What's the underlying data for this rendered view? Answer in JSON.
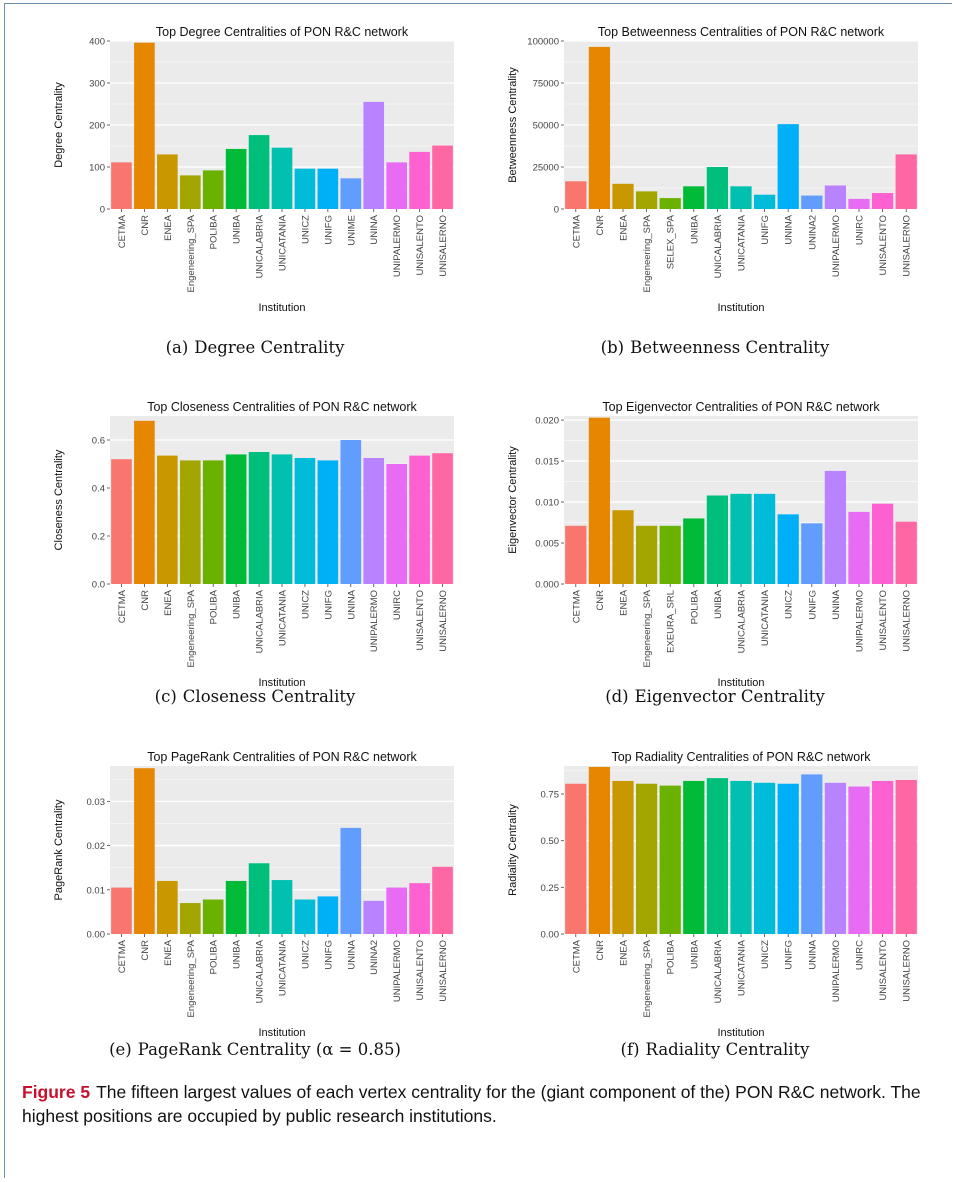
{
  "figure": {
    "label": "Figure 5",
    "caption": "The fifteen largest values of each vertex centrality for the (giant component of the) PON R&C network. The highest positions are occupied by public research institutions."
  },
  "subcaptions": [
    {
      "letter": "(a)",
      "text": "Degree Centrality"
    },
    {
      "letter": "(b)",
      "text": "Betweenness Centrality"
    },
    {
      "letter": "(c)",
      "text": "Closeness Centrality"
    },
    {
      "letter": "(d)",
      "text": "Eigenvector Centrality"
    },
    {
      "letter": "(e)",
      "text": "PageRank Centrality (α = 0.85)"
    },
    {
      "letter": "(f)",
      "text": "Radiality Centrality"
    }
  ],
  "palette": [
    "#F8766D",
    "#E58700",
    "#C99800",
    "#A3A500",
    "#6BB100",
    "#00BA38",
    "#00BF7D",
    "#00C0AF",
    "#00BCD8",
    "#00B0F6",
    "#619CFF",
    "#B983FF",
    "#E76BF3",
    "#FD61D1",
    "#FF67A4"
  ],
  "chart_data": [
    {
      "type": "bar",
      "title": "Top Degree Centralities of PON R&C network",
      "xlabel": "Institution",
      "ylabel": "Degree Centrality",
      "ylim": [
        0,
        400
      ],
      "yticks": [
        0,
        100,
        200,
        300,
        400
      ],
      "ytick_labels": [
        "0",
        "100",
        "200",
        "300",
        "400"
      ],
      "categories": [
        "CETMA",
        "CNR",
        "ENEA",
        "Engeneering_SPA",
        "POLIBA",
        "UNIBA",
        "UNICALABRIA",
        "UNICATANIA",
        "UNICZ",
        "UNIFG",
        "UNIME",
        "UNINA",
        "UNIPALERMO",
        "UNISALENTO",
        "UNISALERNO"
      ],
      "values": [
        111,
        396,
        130,
        80,
        92,
        143,
        176,
        146,
        96,
        96,
        73,
        255,
        111,
        136,
        151
      ]
    },
    {
      "type": "bar",
      "title": "Top Betweenness Centralities of PON R&C network",
      "xlabel": "Institution",
      "ylabel": "Betweenness Centrality",
      "ylim": [
        0,
        100000
      ],
      "yticks": [
        0,
        25000,
        50000,
        75000,
        100000
      ],
      "ytick_labels": [
        "0",
        "25000",
        "50000",
        "75000",
        "100000"
      ],
      "categories": [
        "CETMA",
        "CNR",
        "ENEA",
        "Engeneering_SPA",
        "SELEX_SPA",
        "UNIBA",
        "UNICALABRIA",
        "UNICATANIA",
        "UNIFG",
        "UNINA",
        "UNINA2",
        "UNIPALERMO",
        "UNIRC",
        "UNISALENTO",
        "UNISALERNO"
      ],
      "values": [
        16500,
        96500,
        15000,
        10500,
        6500,
        13500,
        25000,
        13500,
        8500,
        50500,
        8000,
        14000,
        6000,
        9500,
        32500
      ]
    },
    {
      "type": "bar",
      "title": "Top Closeness Centralities of PON R&C network",
      "xlabel": "Institution",
      "ylabel": "Closeness Centrality",
      "ylim": [
        0,
        0.7
      ],
      "yticks": [
        0,
        0.2,
        0.4,
        0.6
      ],
      "ytick_labels": [
        "0.0",
        "0.2",
        "0.4",
        "0.6"
      ],
      "categories": [
        "CETMA",
        "CNR",
        "ENEA",
        "Engeneering_SPA",
        "POLIBA",
        "UNIBA",
        "UNICALABRIA",
        "UNICATANIA",
        "UNICZ",
        "UNIFG",
        "UNINA",
        "UNIPALERMO",
        "UNIRC",
        "UNISALENTO",
        "UNISALERNO"
      ],
      "values": [
        0.52,
        0.68,
        0.535,
        0.515,
        0.515,
        0.54,
        0.55,
        0.54,
        0.525,
        0.515,
        0.6,
        0.525,
        0.5,
        0.535,
        0.545
      ]
    },
    {
      "type": "bar",
      "title": "Top Eigenvector Centralities of PON R&C network",
      "xlabel": "Institution",
      "ylabel": "Eigenvector Centrality",
      "ylim": [
        0,
        0.0205
      ],
      "yticks": [
        0,
        0.005,
        0.01,
        0.015,
        0.02
      ],
      "ytick_labels": [
        "0.000",
        "0.005",
        "0.010",
        "0.015",
        "0.020"
      ],
      "categories": [
        "CETMA",
        "CNR",
        "ENEA",
        "Engeneering_SPA",
        "EXEURA_SRL",
        "POLIBA",
        "UNIBA",
        "UNICALABRIA",
        "UNICATANIA",
        "UNICZ",
        "UNIFG",
        "UNINA",
        "UNIPALERMO",
        "UNISALENTO",
        "UNISALERNO"
      ],
      "values": [
        0.0071,
        0.0203,
        0.009,
        0.0071,
        0.0071,
        0.008,
        0.0108,
        0.011,
        0.011,
        0.0085,
        0.0074,
        0.0138,
        0.0088,
        0.0098,
        0.0076
      ]
    },
    {
      "type": "bar",
      "title": "Top PageRank Centralities of PON R&C network",
      "xlabel": "Institution",
      "ylabel": "PageRank Centrality",
      "ylim": [
        0,
        0.038
      ],
      "yticks": [
        0,
        0.01,
        0.02,
        0.03
      ],
      "ytick_labels": [
        "0.00",
        "0.01",
        "0.02",
        "0.03"
      ],
      "categories": [
        "CETMA",
        "CNR",
        "ENEA",
        "Engeneering_SPA",
        "POLIBA",
        "UNIBA",
        "UNICALABRIA",
        "UNICATANIA",
        "UNICZ",
        "UNIFG",
        "UNINA",
        "UNINA2",
        "UNIPALERMO",
        "UNISALENTO",
        "UNISALERNO"
      ],
      "values": [
        0.0105,
        0.0375,
        0.012,
        0.007,
        0.0078,
        0.012,
        0.016,
        0.0122,
        0.0078,
        0.0085,
        0.024,
        0.0075,
        0.0105,
        0.0115,
        0.0152
      ]
    },
    {
      "type": "bar",
      "title": "Top Radiality Centralities of PON R&C network",
      "xlabel": "Institution",
      "ylabel": "Radiality Centrality",
      "ylim": [
        0,
        0.9
      ],
      "yticks": [
        0,
        0.25,
        0.5,
        0.75
      ],
      "ytick_labels": [
        "0.00",
        "0.25",
        "0.50",
        "0.75"
      ],
      "categories": [
        "CETMA",
        "CNR",
        "ENEA",
        "Engeneering_SPA",
        "POLIBA",
        "UNIBA",
        "UNICALABRIA",
        "UNICATANIA",
        "UNICZ",
        "UNIFG",
        "UNINA",
        "UNIPALERMO",
        "UNIRC",
        "UNISALENTO",
        "UNISALERNO"
      ],
      "values": [
        0.805,
        0.895,
        0.82,
        0.805,
        0.795,
        0.82,
        0.835,
        0.82,
        0.81,
        0.805,
        0.855,
        0.81,
        0.79,
        0.82,
        0.825
      ]
    }
  ]
}
